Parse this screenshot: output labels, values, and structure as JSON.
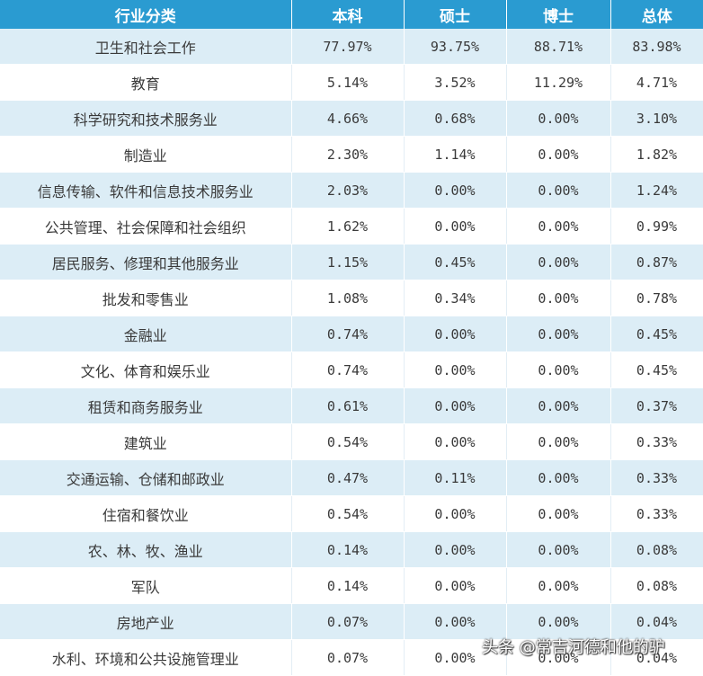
{
  "table": {
    "headers": [
      "行业分类",
      "本科",
      "硕士",
      "博士",
      "总体"
    ],
    "rows": [
      [
        "卫生和社会工作",
        "77.97%",
        "93.75%",
        "88.71%",
        "83.98%"
      ],
      [
        "教育",
        "5.14%",
        "3.52%",
        "11.29%",
        "4.71%"
      ],
      [
        "科学研究和技术服务业",
        "4.66%",
        "0.68%",
        "0.00%",
        "3.10%"
      ],
      [
        "制造业",
        "2.30%",
        "1.14%",
        "0.00%",
        "1.82%"
      ],
      [
        "信息传输、软件和信息技术服务业",
        "2.03%",
        "0.00%",
        "0.00%",
        "1.24%"
      ],
      [
        "公共管理、社会保障和社会组织",
        "1.62%",
        "0.00%",
        "0.00%",
        "0.99%"
      ],
      [
        "居民服务、修理和其他服务业",
        "1.15%",
        "0.45%",
        "0.00%",
        "0.87%"
      ],
      [
        "批发和零售业",
        "1.08%",
        "0.34%",
        "0.00%",
        "0.78%"
      ],
      [
        "金融业",
        "0.74%",
        "0.00%",
        "0.00%",
        "0.45%"
      ],
      [
        "文化、体育和娱乐业",
        "0.74%",
        "0.00%",
        "0.00%",
        "0.45%"
      ],
      [
        "租赁和商务服务业",
        "0.61%",
        "0.00%",
        "0.00%",
        "0.37%"
      ],
      [
        "建筑业",
        "0.54%",
        "0.00%",
        "0.00%",
        "0.33%"
      ],
      [
        "交通运输、仓储和邮政业",
        "0.47%",
        "0.11%",
        "0.00%",
        "0.33%"
      ],
      [
        "住宿和餐饮业",
        "0.54%",
        "0.00%",
        "0.00%",
        "0.33%"
      ],
      [
        "农、林、牧、渔业",
        "0.14%",
        "0.00%",
        "0.00%",
        "0.08%"
      ],
      [
        "军队",
        "0.14%",
        "0.00%",
        "0.00%",
        "0.08%"
      ],
      [
        "房地产业",
        "0.07%",
        "0.00%",
        "0.00%",
        "0.04%"
      ],
      [
        "水利、环境和公共设施管理业",
        "0.07%",
        "0.00%",
        "0.00%",
        "0.04%"
      ]
    ]
  },
  "watermark": "头条 @常吉河德和他的驴",
  "colors": {
    "header_bg": "#2a9bd1",
    "header_text": "#ffffff",
    "row_alt_bg": "#dcedf6",
    "row_bg": "#ffffff",
    "cell_text": "#3a3a3a"
  }
}
